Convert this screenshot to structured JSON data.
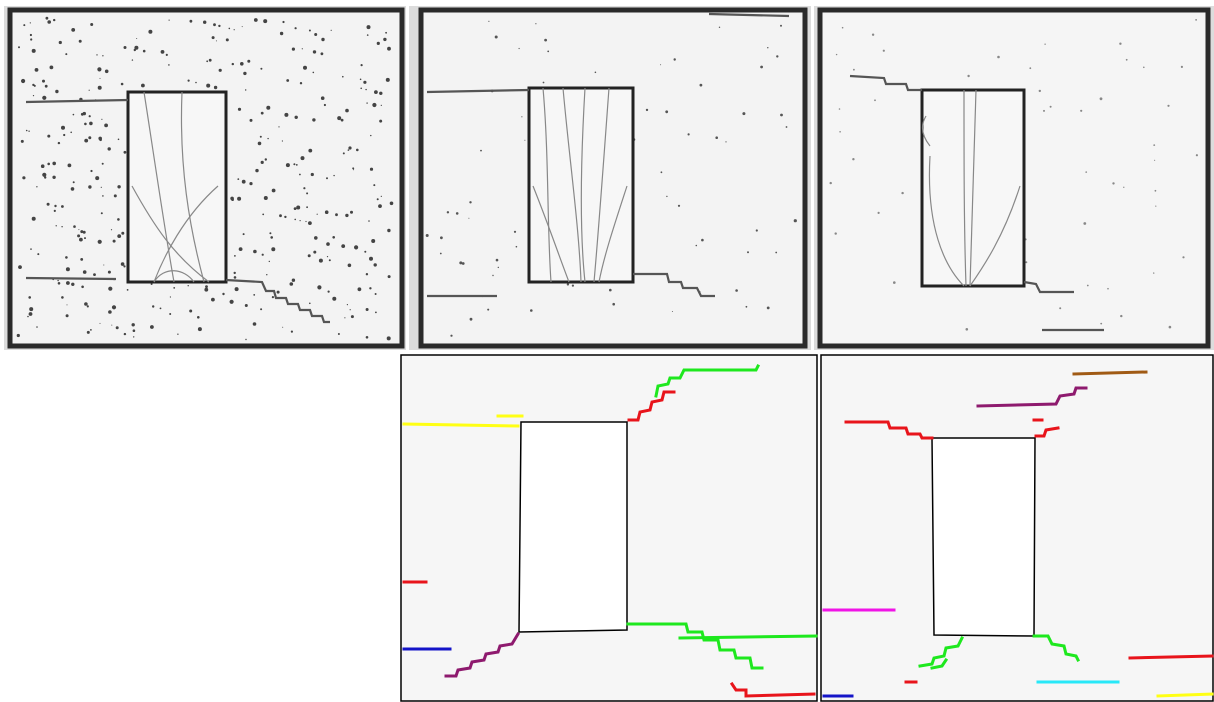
{
  "figure": {
    "colors": {
      "red": "#e8141b",
      "green": "#1ee81e",
      "yellow": "#ffff14",
      "purple": "#8e1a6e",
      "blue": "#1414c8",
      "magenta": "#f014e6",
      "cyan": "#28e8f8",
      "brown": "#a05a14",
      "outline": "#000000",
      "panel_bg": "#f6f6f6",
      "photo_bg": "#f2f2f2",
      "frame": "#2a2a2a",
      "crack": "#9a9a9a"
    }
  }
}
